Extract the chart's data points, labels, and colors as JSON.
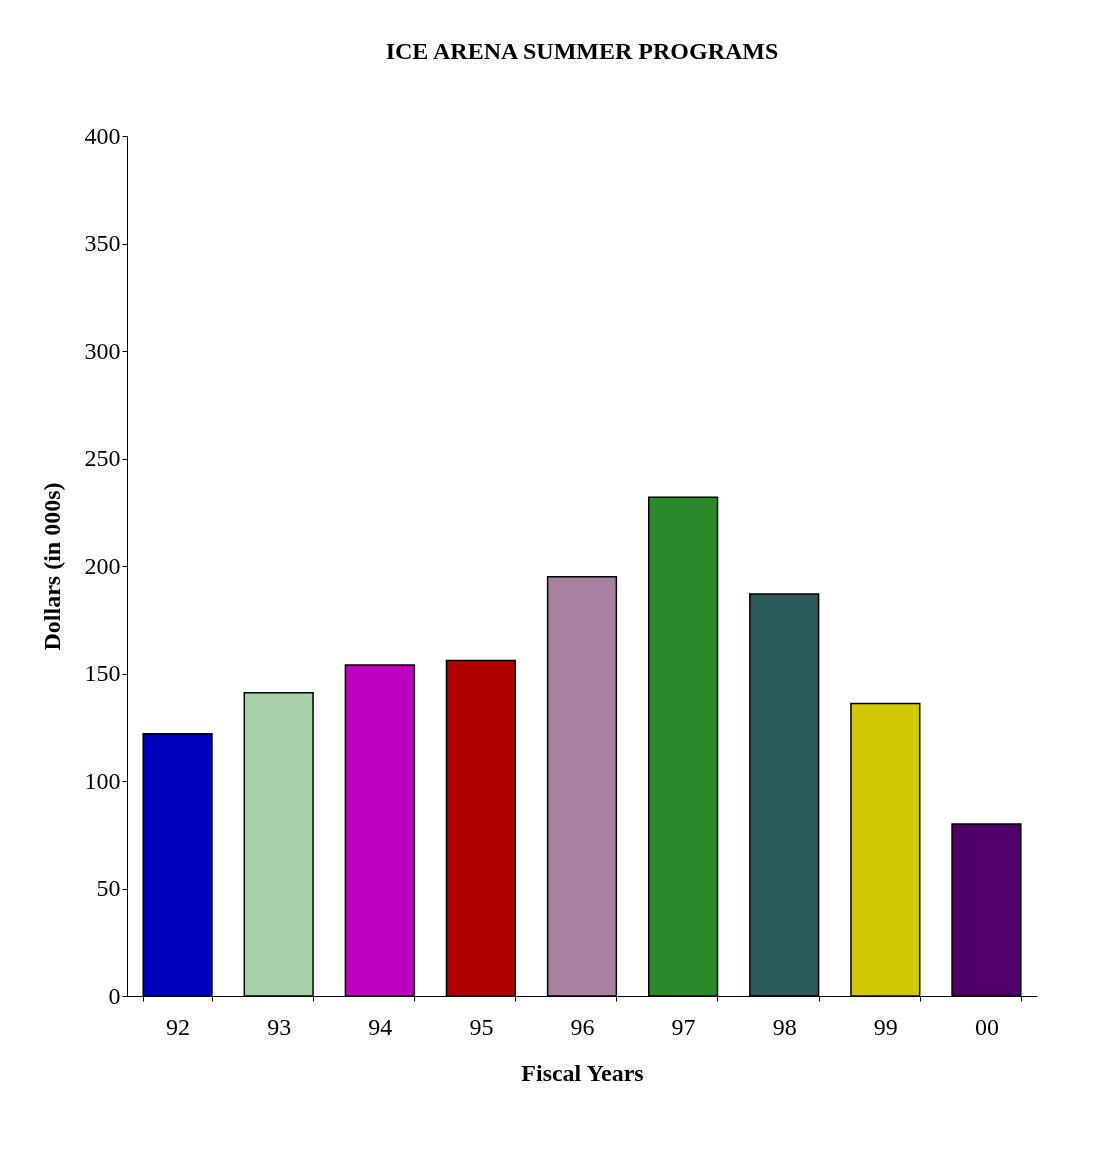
{
  "chart_data": {
    "type": "bar",
    "title": "ICE ARENA SUMMER PROGRAMS",
    "xlabel": "Fiscal Years",
    "ylabel": "Dollars (in 000s)",
    "categories": [
      "92",
      "93",
      "94",
      "95",
      "96",
      "97",
      "98",
      "99",
      "00"
    ],
    "values": [
      122,
      141,
      154,
      156,
      195,
      232,
      187,
      136,
      80
    ],
    "colors": [
      "#0000c0",
      "#a8d0a8",
      "#c000c0",
      "#b00000",
      "#a880a0",
      "#2a8a2a",
      "#2a5a5a",
      "#d0c800",
      "#50006a"
    ],
    "ylim": [
      0,
      400
    ],
    "yticks": [
      0,
      50,
      100,
      150,
      200,
      250,
      300,
      350,
      400
    ],
    "grid": false
  }
}
